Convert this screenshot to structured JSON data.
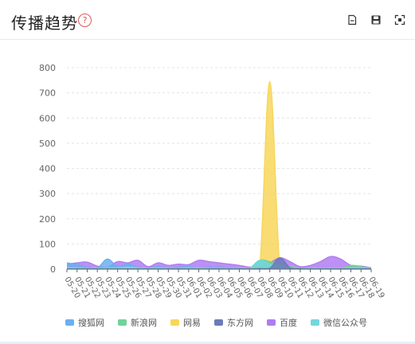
{
  "header": {
    "title": "传播趋势",
    "help_glyph": "?"
  },
  "toolbar": {
    "items": [
      {
        "name": "data-view-icon"
      },
      {
        "name": "save-image-icon"
      },
      {
        "name": "fullscreen-icon"
      }
    ]
  },
  "colors": {
    "sohu": "#6ab0f0",
    "sina": "#6fd39a",
    "netease": "#f8d65a",
    "eastday": "#6b7bb8",
    "baidu": "#b07cf2",
    "wechat": "#72d6dc",
    "grid": "#e4e4e4",
    "axis": "#666666",
    "tick_text": "#666666"
  },
  "chart_data": {
    "type": "area",
    "ylim": [
      0,
      800
    ],
    "yticks": [
      0,
      100,
      200,
      300,
      400,
      500,
      600,
      700,
      800
    ],
    "categories": [
      "05-20",
      "05-21",
      "05-22",
      "05-23",
      "05-24",
      "05-25",
      "05-26",
      "05-27",
      "05-28",
      "05-29",
      "05-30",
      "05-31",
      "06-01",
      "06-02",
      "06-03",
      "06-04",
      "06-05",
      "06-06",
      "06-07",
      "06-08",
      "06-09",
      "06-10",
      "06-11",
      "06-12",
      "06-13",
      "06-14",
      "06-15",
      "06-16",
      "06-17",
      "06-18",
      "06-19"
    ],
    "series": [
      {
        "name": "搜狐网",
        "color_key": "sohu",
        "values": [
          25,
          18,
          8,
          5,
          40,
          10,
          20,
          8,
          5,
          10,
          5,
          8,
          10,
          6,
          8,
          8,
          6,
          3,
          2,
          2,
          3,
          3,
          2,
          3,
          2,
          3,
          3,
          2,
          2,
          2,
          2
        ]
      },
      {
        "name": "新浪网",
        "color_key": "sina",
        "values": [
          3,
          3,
          2,
          2,
          3,
          2,
          2,
          3,
          2,
          2,
          2,
          2,
          3,
          3,
          2,
          3,
          2,
          2,
          3,
          35,
          30,
          20,
          10,
          5,
          3,
          3,
          3,
          2,
          15,
          10,
          2
        ]
      },
      {
        "name": "网易",
        "color_key": "netease",
        "values": [
          2,
          2,
          2,
          2,
          2,
          2,
          2,
          2,
          2,
          2,
          2,
          2,
          2,
          2,
          2,
          2,
          2,
          2,
          2,
          2,
          745,
          2,
          2,
          2,
          2,
          2,
          2,
          2,
          2,
          2,
          2
        ]
      },
      {
        "name": "东方网",
        "color_key": "eastday",
        "values": [
          1,
          1,
          1,
          1,
          1,
          1,
          1,
          1,
          1,
          1,
          1,
          1,
          1,
          1,
          1,
          1,
          1,
          1,
          1,
          2,
          3,
          45,
          5,
          2,
          1,
          1,
          1,
          1,
          1,
          1,
          1
        ]
      },
      {
        "name": "百度",
        "color_key": "baidu",
        "values": [
          20,
          25,
          28,
          12,
          8,
          30,
          25,
          35,
          10,
          25,
          15,
          20,
          18,
          35,
          30,
          25,
          20,
          15,
          8,
          10,
          25,
          45,
          30,
          10,
          15,
          30,
          50,
          40,
          15,
          12,
          5
        ]
      },
      {
        "name": "微信公众号",
        "color_key": "wechat",
        "values": [
          5,
          5,
          3,
          3,
          5,
          5,
          8,
          5,
          3,
          5,
          3,
          3,
          5,
          5,
          3,
          3,
          3,
          3,
          3,
          35,
          20,
          15,
          5,
          3,
          3,
          3,
          3,
          3,
          5,
          5,
          3
        ]
      }
    ],
    "legend_position": "bottom",
    "grid": true
  }
}
